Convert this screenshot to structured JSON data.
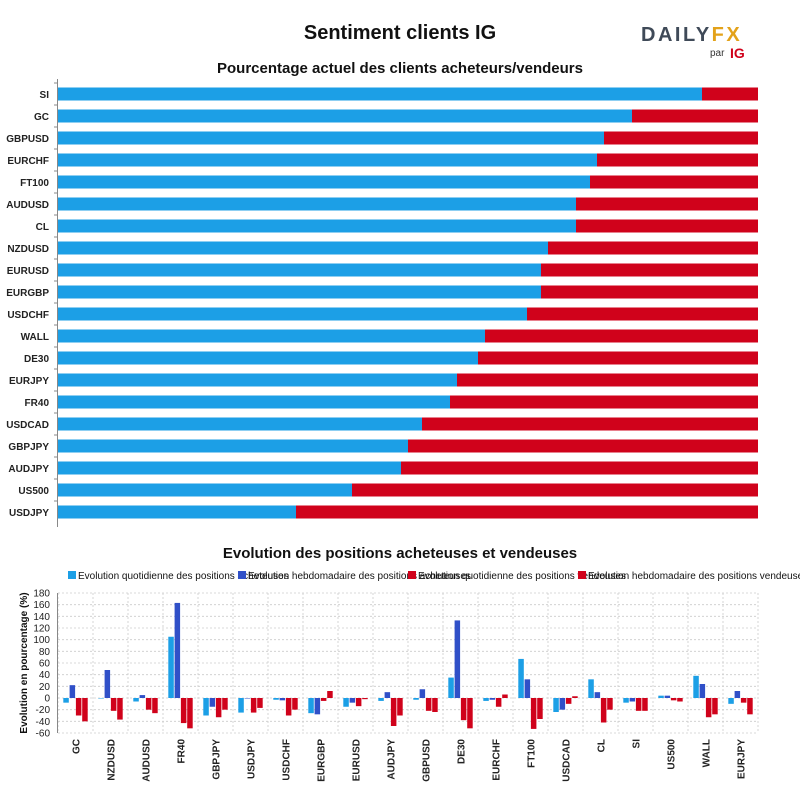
{
  "header": {
    "title": "Sentiment clients IG",
    "logo": {
      "brand_main": "DAILY",
      "brand_accent": "FX",
      "par": "par",
      "ig": "IG"
    }
  },
  "colors": {
    "buy": "#1c9fe6",
    "sell": "#d0021b",
    "weekly_buy": "#3050c8",
    "grid": "#cccccc"
  },
  "chart_data": [
    {
      "type": "bar",
      "orientation": "horizontal",
      "stacked": true,
      "title": "Pourcentage actuel des clients acheteurs/vendeurs",
      "categories": [
        "SI",
        "GC",
        "GBPUSD",
        "EURCHF",
        "FT100",
        "AUDUSD",
        "CL",
        "NZDUSD",
        "EURUSD",
        "EURGBP",
        "USDCHF",
        "WALL",
        "DE30",
        "EURJPY",
        "FR40",
        "USDCAD",
        "GBPJPY",
        "AUDJPY",
        "US500",
        "USDJPY"
      ],
      "series": [
        {
          "values": [
            92,
            82,
            78,
            77,
            76,
            74,
            74,
            70,
            69,
            69,
            67,
            61,
            60,
            57,
            56,
            52,
            50,
            49,
            42,
            34
          ]
        },
        {
          "values": [
            8,
            18,
            22,
            23,
            24,
            26,
            26,
            30,
            31,
            31,
            33,
            39,
            40,
            43,
            44,
            48,
            50,
            51,
            58,
            66
          ]
        }
      ],
      "xlim": [
        0,
        100
      ]
    },
    {
      "type": "bar",
      "title": "Evolution des positions acheteuses et vendeuses",
      "ylabel": "Evolution en pourcentage (%)",
      "ylim": [
        -60,
        180
      ],
      "yticks": [
        -60,
        -40,
        -20,
        0,
        20,
        40,
        60,
        80,
        100,
        120,
        140,
        160,
        180
      ],
      "legend_position": "top",
      "categories": [
        "GC",
        "NZDUSD",
        "AUDUSD",
        "FR40",
        "GBPJPY",
        "USDJPY",
        "USDCHF",
        "EURGBP",
        "EURUSD",
        "AUDJPY",
        "GBPUSD",
        "DE30",
        "EURCHF",
        "FT100",
        "USDCAD",
        "CL",
        "SI",
        "US500",
        "WALL",
        "EURJPY"
      ],
      "series": [
        {
          "name": "Evolution quotidienne des positions acheteuses",
          "values": [
            -8,
            0,
            -6,
            105,
            -30,
            -25,
            -3,
            -26,
            -15,
            -5,
            -3,
            35,
            -5,
            67,
            -24,
            32,
            -8,
            4,
            38,
            -10
          ]
        },
        {
          "name": "Evolution hebdomadaire des positions acheteuses",
          "values": [
            22,
            48,
            5,
            163,
            -15,
            0,
            -4,
            -28,
            -8,
            10,
            15,
            133,
            -3,
            32,
            -20,
            10,
            -6,
            4,
            24,
            12
          ]
        },
        {
          "name": "Evolution quotidienne des positions vendeuses",
          "values": [
            -30,
            -22,
            -20,
            -43,
            -33,
            -25,
            -30,
            -5,
            -14,
            -48,
            -22,
            -38,
            -15,
            -53,
            -10,
            -42,
            -22,
            -4,
            -33,
            -8
          ]
        },
        {
          "name": "Evolution hebdomadaire des positions vendeuses",
          "values": [
            -40,
            -37,
            -26,
            -52,
            -20,
            -17,
            -20,
            12,
            -2,
            -30,
            -24,
            -52,
            6,
            -36,
            3,
            -20,
            -22,
            -6,
            -28,
            -28
          ]
        }
      ]
    }
  ]
}
